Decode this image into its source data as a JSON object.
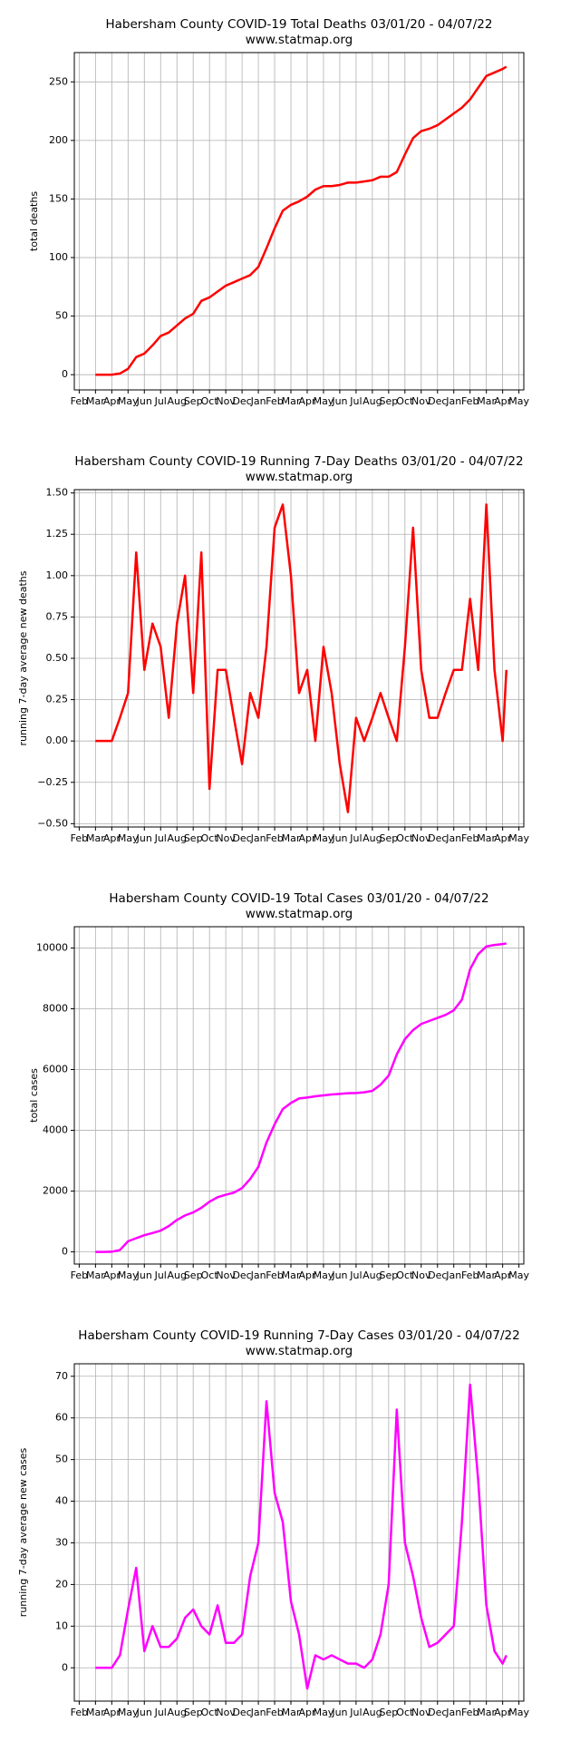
{
  "chart_data": [
    {
      "type": "line",
      "title": "Habersham County COVID-19 Total Deaths 03/01/20 - 04/07/22",
      "subtitle": "www.statmap.org",
      "ylabel": "total deaths",
      "color": "#ff0000",
      "grid": true,
      "xlim": [
        -0.3,
        27.3
      ],
      "ylim": [
        -13,
        275
      ],
      "yticks": [
        0,
        50,
        100,
        150,
        200,
        250
      ],
      "xticks": [
        {
          "value": 0,
          "label": "Feb"
        },
        {
          "value": 1,
          "label": "Mar"
        },
        {
          "value": 2,
          "label": "Apr"
        },
        {
          "value": 3,
          "label": "May"
        },
        {
          "value": 4,
          "label": "Jun"
        },
        {
          "value": 5,
          "label": "Jul"
        },
        {
          "value": 6,
          "label": "Aug"
        },
        {
          "value": 7,
          "label": "Sep"
        },
        {
          "value": 8,
          "label": "Oct"
        },
        {
          "value": 9,
          "label": "Nov"
        },
        {
          "value": 10,
          "label": "Dec"
        },
        {
          "value": 11,
          "label": "Jan"
        },
        {
          "value": 12,
          "label": "Feb"
        },
        {
          "value": 13,
          "label": "Mar"
        },
        {
          "value": 14,
          "label": "Apr"
        },
        {
          "value": 15,
          "label": "May"
        },
        {
          "value": 16,
          "label": "Jun"
        },
        {
          "value": 17,
          "label": "Jul"
        },
        {
          "value": 18,
          "label": "Aug"
        },
        {
          "value": 19,
          "label": "Sep"
        },
        {
          "value": 20,
          "label": "Oct"
        },
        {
          "value": 21,
          "label": "Nov"
        },
        {
          "value": 22,
          "label": "Dec"
        },
        {
          "value": 23,
          "label": "Jan"
        },
        {
          "value": 24,
          "label": "Feb"
        },
        {
          "value": 25,
          "label": "Mar"
        },
        {
          "value": 26,
          "label": "Apr"
        },
        {
          "value": 27,
          "label": "May"
        }
      ],
      "x": [
        1,
        1.5,
        2,
        2.5,
        3,
        3.5,
        4,
        4.5,
        5,
        5.5,
        6,
        6.5,
        7,
        7.5,
        8,
        8.5,
        9,
        9.5,
        10,
        10.5,
        11,
        11.5,
        12,
        12.5,
        13,
        13.5,
        14,
        14.5,
        15,
        15.5,
        16,
        16.5,
        17,
        17.5,
        18,
        18.5,
        19,
        19.5,
        20,
        20.5,
        21,
        21.5,
        22,
        22.5,
        23,
        23.5,
        24,
        24.5,
        25,
        25.5,
        26,
        26.23
      ],
      "values": [
        0,
        0,
        0,
        1,
        5,
        15,
        18,
        25,
        33,
        36,
        42,
        48,
        52,
        63,
        66,
        71,
        76,
        79,
        82,
        85,
        92,
        108,
        125,
        140,
        145,
        148,
        152,
        158,
        161,
        161,
        162,
        164,
        164,
        165,
        166,
        169,
        169,
        173,
        188,
        202,
        208,
        210,
        213,
        218,
        223,
        228,
        235,
        245,
        255,
        258,
        261,
        263
      ]
    },
    {
      "type": "line",
      "title": "Habersham County COVID-19 Running 7-Day Deaths 03/01/20 - 04/07/22",
      "subtitle": "www.statmap.org",
      "ylabel": "running 7-day average new deaths",
      "color": "#ff0000",
      "grid": true,
      "xlim": [
        -0.3,
        27.3
      ],
      "ylim": [
        -0.52,
        1.52
      ],
      "yticks": [
        {
          "value": -0.5,
          "label": "−0.50"
        },
        {
          "value": -0.25,
          "label": "−0.25"
        },
        {
          "value": 0,
          "label": "0.00"
        },
        {
          "value": 0.25,
          "label": "0.25"
        },
        {
          "value": 0.5,
          "label": "0.50"
        },
        {
          "value": 0.75,
          "label": "0.75"
        },
        {
          "value": 1,
          "label": "1.00"
        },
        {
          "value": 1.25,
          "label": "1.25"
        },
        {
          "value": 1.5,
          "label": "1.50"
        }
      ],
      "xticks": [
        {
          "value": 0,
          "label": "Feb"
        },
        {
          "value": 1,
          "label": "Mar"
        },
        {
          "value": 2,
          "label": "Apr"
        },
        {
          "value": 3,
          "label": "May"
        },
        {
          "value": 4,
          "label": "Jun"
        },
        {
          "value": 5,
          "label": "Jul"
        },
        {
          "value": 6,
          "label": "Aug"
        },
        {
          "value": 7,
          "label": "Sep"
        },
        {
          "value": 8,
          "label": "Oct"
        },
        {
          "value": 9,
          "label": "Nov"
        },
        {
          "value": 10,
          "label": "Dec"
        },
        {
          "value": 11,
          "label": "Jan"
        },
        {
          "value": 12,
          "label": "Feb"
        },
        {
          "value": 13,
          "label": "Mar"
        },
        {
          "value": 14,
          "label": "Apr"
        },
        {
          "value": 15,
          "label": "May"
        },
        {
          "value": 16,
          "label": "Jun"
        },
        {
          "value": 17,
          "label": "Jul"
        },
        {
          "value": 18,
          "label": "Aug"
        },
        {
          "value": 19,
          "label": "Sep"
        },
        {
          "value": 20,
          "label": "Oct"
        },
        {
          "value": 21,
          "label": "Nov"
        },
        {
          "value": 22,
          "label": "Dec"
        },
        {
          "value": 23,
          "label": "Jan"
        },
        {
          "value": 24,
          "label": "Feb"
        },
        {
          "value": 25,
          "label": "Mar"
        },
        {
          "value": 26,
          "label": "Apr"
        },
        {
          "value": 27,
          "label": "May"
        }
      ],
      "x": [
        1,
        1.5,
        2,
        2.5,
        3,
        3.5,
        4,
        4.5,
        5,
        5.5,
        6,
        6.5,
        7,
        7.5,
        8,
        8.5,
        9,
        9.5,
        10,
        10.5,
        11,
        11.5,
        12,
        12.5,
        13,
        13.5,
        14,
        14.5,
        15,
        15.5,
        16,
        16.5,
        17,
        17.5,
        18,
        18.5,
        19,
        19.5,
        20,
        20.5,
        21,
        21.5,
        22,
        22.5,
        23,
        23.5,
        24,
        24.5,
        25,
        25.5,
        26,
        26.23
      ],
      "values": [
        0,
        0,
        0,
        0.14,
        0.29,
        1.14,
        0.43,
        0.71,
        0.57,
        0.14,
        0.71,
        1.0,
        0.29,
        1.14,
        -0.29,
        0.43,
        0.43,
        0.14,
        -0.14,
        0.29,
        0.14,
        0.57,
        1.29,
        1.43,
        1.0,
        0.29,
        0.43,
        0.0,
        0.57,
        0.29,
        -0.14,
        -0.43,
        0.14,
        0.0,
        0.14,
        0.29,
        0.14,
        0.0,
        0.57,
        1.29,
        0.43,
        0.14,
        0.14,
        0.29,
        0.43,
        0.43,
        0.86,
        0.43,
        1.43,
        0.43,
        0.0,
        0.43
      ]
    },
    {
      "type": "line",
      "title": "Habersham County COVID-19 Total Cases 03/01/20 - 04/07/22",
      "subtitle": "www.statmap.org",
      "ylabel": "total cases",
      "color": "#ff00ff",
      "grid": true,
      "xlim": [
        -0.3,
        27.3
      ],
      "ylim": [
        -400,
        10700
      ],
      "yticks": [
        0,
        2000,
        4000,
        6000,
        8000,
        10000
      ],
      "xticks": [
        {
          "value": 0,
          "label": "Feb"
        },
        {
          "value": 1,
          "label": "Mar"
        },
        {
          "value": 2,
          "label": "Apr"
        },
        {
          "value": 3,
          "label": "May"
        },
        {
          "value": 4,
          "label": "Jun"
        },
        {
          "value": 5,
          "label": "Jul"
        },
        {
          "value": 6,
          "label": "Aug"
        },
        {
          "value": 7,
          "label": "Sep"
        },
        {
          "value": 8,
          "label": "Oct"
        },
        {
          "value": 9,
          "label": "Nov"
        },
        {
          "value": 10,
          "label": "Dec"
        },
        {
          "value": 11,
          "label": "Jan"
        },
        {
          "value": 12,
          "label": "Feb"
        },
        {
          "value": 13,
          "label": "Mar"
        },
        {
          "value": 14,
          "label": "Apr"
        },
        {
          "value": 15,
          "label": "May"
        },
        {
          "value": 16,
          "label": "Jun"
        },
        {
          "value": 17,
          "label": "Jul"
        },
        {
          "value": 18,
          "label": "Aug"
        },
        {
          "value": 19,
          "label": "Sep"
        },
        {
          "value": 20,
          "label": "Oct"
        },
        {
          "value": 21,
          "label": "Nov"
        },
        {
          "value": 22,
          "label": "Dec"
        },
        {
          "value": 23,
          "label": "Jan"
        },
        {
          "value": 24,
          "label": "Feb"
        },
        {
          "value": 25,
          "label": "Mar"
        },
        {
          "value": 26,
          "label": "Apr"
        },
        {
          "value": 27,
          "label": "May"
        }
      ],
      "x": [
        1,
        1.5,
        2,
        2.5,
        3,
        3.5,
        4,
        4.5,
        5,
        5.5,
        6,
        6.5,
        7,
        7.5,
        8,
        8.5,
        9,
        9.5,
        10,
        10.5,
        11,
        11.5,
        12,
        12.5,
        13,
        13.5,
        14,
        14.5,
        15,
        15.5,
        16,
        16.5,
        17,
        17.5,
        18,
        18.5,
        19,
        19.5,
        20,
        20.5,
        21,
        21.5,
        22,
        22.5,
        23,
        23.5,
        24,
        24.5,
        25,
        25.5,
        26,
        26.23
      ],
      "values": [
        0,
        0,
        5,
        60,
        350,
        450,
        550,
        620,
        700,
        850,
        1050,
        1200,
        1300,
        1450,
        1650,
        1800,
        1880,
        1950,
        2100,
        2400,
        2800,
        3600,
        4200,
        4700,
        4900,
        5050,
        5080,
        5120,
        5150,
        5180,
        5200,
        5220,
        5230,
        5250,
        5300,
        5500,
        5800,
        6500,
        7000,
        7300,
        7500,
        7600,
        7700,
        7800,
        7950,
        8300,
        9300,
        9800,
        10050,
        10100,
        10130,
        10150
      ]
    },
    {
      "type": "line",
      "title": "Habersham County COVID-19 Running 7-Day Cases 03/01/20 - 04/07/22",
      "subtitle": "www.statmap.org",
      "ylabel": "running 7-day average new cases",
      "color": "#ff00ff",
      "grid": true,
      "xlim": [
        -0.3,
        27.3
      ],
      "ylim": [
        -8,
        73
      ],
      "yticks": [
        0,
        10,
        20,
        30,
        40,
        50,
        60,
        70
      ],
      "xticks": [
        {
          "value": 0,
          "label": "Feb"
        },
        {
          "value": 1,
          "label": "Mar"
        },
        {
          "value": 2,
          "label": "Apr"
        },
        {
          "value": 3,
          "label": "May"
        },
        {
          "value": 4,
          "label": "Jun"
        },
        {
          "value": 5,
          "label": "Jul"
        },
        {
          "value": 6,
          "label": "Aug"
        },
        {
          "value": 7,
          "label": "Sep"
        },
        {
          "value": 8,
          "label": "Oct"
        },
        {
          "value": 9,
          "label": "Nov"
        },
        {
          "value": 10,
          "label": "Dec"
        },
        {
          "value": 11,
          "label": "Jan"
        },
        {
          "value": 12,
          "label": "Feb"
        },
        {
          "value": 13,
          "label": "Mar"
        },
        {
          "value": 14,
          "label": "Apr"
        },
        {
          "value": 15,
          "label": "May"
        },
        {
          "value": 16,
          "label": "Jun"
        },
        {
          "value": 17,
          "label": "Jul"
        },
        {
          "value": 18,
          "label": "Aug"
        },
        {
          "value": 19,
          "label": "Sep"
        },
        {
          "value": 20,
          "label": "Oct"
        },
        {
          "value": 21,
          "label": "Nov"
        },
        {
          "value": 22,
          "label": "Dec"
        },
        {
          "value": 23,
          "label": "Jan"
        },
        {
          "value": 24,
          "label": "Feb"
        },
        {
          "value": 25,
          "label": "Mar"
        },
        {
          "value": 26,
          "label": "Apr"
        },
        {
          "value": 27,
          "label": "May"
        }
      ],
      "x": [
        1,
        1.5,
        2,
        2.5,
        3,
        3.5,
        4,
        4.5,
        5,
        5.5,
        6,
        6.5,
        7,
        7.5,
        8,
        8.5,
        9,
        9.5,
        10,
        10.5,
        11,
        11.5,
        12,
        12.5,
        13,
        13.5,
        14,
        14.5,
        15,
        15.5,
        16,
        16.5,
        17,
        17.5,
        18,
        18.5,
        19,
        19.5,
        20,
        20.5,
        21,
        21.5,
        22,
        22.5,
        23,
        23.5,
        24,
        24.5,
        25,
        25.5,
        26,
        26.23
      ],
      "values": [
        0,
        0,
        0,
        3,
        14,
        24,
        4,
        10,
        5,
        5,
        7,
        12,
        14,
        10,
        8,
        15,
        6,
        6,
        8,
        22,
        30,
        64,
        42,
        35,
        16,
        8,
        -5,
        3,
        2,
        3,
        2,
        1,
        1,
        0,
        2,
        8,
        20,
        62,
        30,
        22,
        12,
        5,
        6,
        8,
        10,
        35,
        68,
        45,
        15,
        4,
        1,
        3
      ]
    }
  ]
}
